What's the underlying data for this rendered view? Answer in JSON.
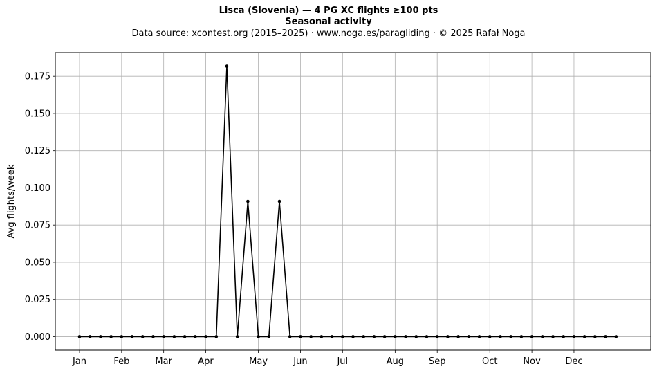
{
  "header": {
    "title": "Lisca (Slovenia)  —  4 PG XC flights ≥100 pts",
    "subtitle": "Seasonal activity",
    "source": "Data source: xcontest.org (2015–2025)  ·  www.noga.es/paragliding  ·  © 2025 Rafał Noga"
  },
  "chart_data": {
    "type": "line",
    "title": "Lisca (Slovenia)  —  4 PG XC flights ≥100 pts",
    "subtitle": "Seasonal activity",
    "xlabel": "",
    "ylabel": "Avg flights/week",
    "x_unit": "week of year",
    "x": [
      1,
      2,
      3,
      4,
      5,
      6,
      7,
      8,
      9,
      10,
      11,
      12,
      13,
      14,
      15,
      16,
      17,
      18,
      19,
      20,
      21,
      22,
      23,
      24,
      25,
      26,
      27,
      28,
      29,
      30,
      31,
      32,
      33,
      34,
      35,
      36,
      37,
      38,
      39,
      40,
      41,
      42,
      43,
      44,
      45,
      46,
      47,
      48,
      49,
      50,
      51,
      52
    ],
    "series": [
      {
        "name": "",
        "color": "#000000",
        "marker": "dot",
        "values": [
          0,
          0,
          0,
          0,
          0,
          0,
          0,
          0,
          0,
          0,
          0,
          0,
          0,
          0,
          0.1818,
          0,
          0.0909,
          0,
          0,
          0.0909,
          0,
          0,
          0,
          0,
          0,
          0,
          0,
          0,
          0,
          0,
          0,
          0,
          0,
          0,
          0,
          0,
          0,
          0,
          0,
          0,
          0,
          0,
          0,
          0,
          0,
          0,
          0,
          0,
          0,
          0,
          0,
          0
        ]
      }
    ],
    "x_ticks": [
      {
        "week": 1,
        "label": "Jan"
      },
      {
        "week": 5,
        "label": "Feb"
      },
      {
        "week": 9,
        "label": "Mar"
      },
      {
        "week": 13,
        "label": "Apr"
      },
      {
        "week": 18,
        "label": "May"
      },
      {
        "week": 22,
        "label": "Jun"
      },
      {
        "week": 26,
        "label": "Jul"
      },
      {
        "week": 31,
        "label": "Aug"
      },
      {
        "week": 35,
        "label": "Sep"
      },
      {
        "week": 40,
        "label": "Oct"
      },
      {
        "week": 44,
        "label": "Nov"
      },
      {
        "week": 48,
        "label": "Dec"
      }
    ],
    "y_ticks": [
      "0.000",
      "0.025",
      "0.050",
      "0.075",
      "0.100",
      "0.125",
      "0.150",
      "0.175"
    ],
    "xlim": [
      -1.3,
      55.3
    ],
    "ylim": [
      -0.0091,
      0.1909
    ],
    "grid": true,
    "legend": "none"
  }
}
